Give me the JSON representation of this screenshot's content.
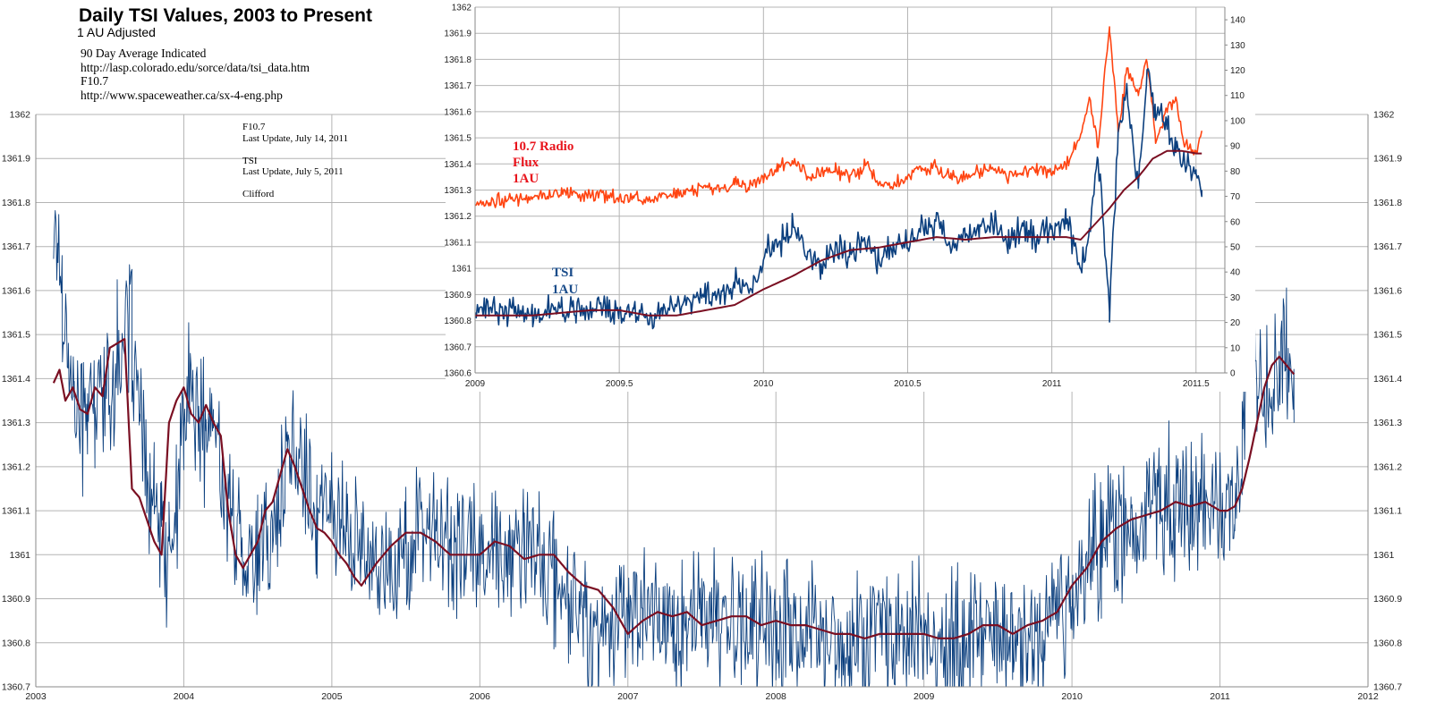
{
  "header": {
    "title": "Daily TSI Values, 2003 to Present",
    "subtitle": "1 AU Adjusted",
    "notes": [
      "90 Day Average Indicated",
      "http://lasp.colorado.edu/sorce/data/tsi_data.htm",
      "F10.7",
      "http://www.spaceweather.ca/sx-4-eng.php"
    ],
    "updates": [
      "F10.7",
      "Last Update, July 14, 2011",
      "",
      "TSI",
      "Last Update, July 5, 2011",
      "",
      "Clifford"
    ]
  },
  "colors": {
    "tsi": "#0b3f7e",
    "avg": "#7a0f22",
    "f107": "#ff4411",
    "grid": "#b4b4b4",
    "f107_label": "#e8141c",
    "tsi_label": "#1a4c8a"
  },
  "chart_data": [
    {
      "id": "main",
      "type": "line",
      "xlim": [
        2003,
        2012
      ],
      "ylim": [
        1360.7,
        1362.0
      ],
      "x_ticks": [
        "2003",
        "2004",
        "2005",
        "2006",
        "2007",
        "2008",
        "2009",
        "2010",
        "2011",
        "2012"
      ],
      "y_ticks": [
        "1362",
        "1361.9",
        "1361.8",
        "1361.7",
        "1361.6",
        "1361.5",
        "1361.4",
        "1361.3",
        "1361.2",
        "1361.1",
        "1361",
        "1360.9",
        "1360.8",
        "1360.7"
      ],
      "grid": true,
      "series": [
        {
          "key": "tsi",
          "noise": 0.14,
          "x": [
            2003.12,
            2003.15,
            2003.18,
            2003.22,
            2003.26,
            2003.3,
            2003.35,
            2003.4,
            2003.45,
            2003.5,
            2003.55,
            2003.6,
            2003.65,
            2003.7,
            2003.75,
            2003.8,
            2003.85,
            2003.9,
            2003.95,
            2004.0,
            2004.05,
            2004.1,
            2004.15,
            2004.2,
            2004.3,
            2004.4,
            2004.5,
            2004.6,
            2004.7,
            2004.8,
            2004.9,
            2005.0,
            2005.1,
            2005.2,
            2005.3,
            2005.4,
            2005.5,
            2005.6,
            2005.7,
            2005.8,
            2005.9,
            2006.0,
            2006.1,
            2006.2,
            2006.3,
            2006.4,
            2006.5,
            2006.6,
            2006.7,
            2006.8,
            2006.9,
            2007.0,
            2007.1,
            2007.2,
            2007.3,
            2007.4,
            2007.5,
            2007.6,
            2007.7,
            2007.8,
            2007.9,
            2008.0,
            2008.1,
            2008.2,
            2008.3,
            2008.4,
            2008.5,
            2008.6,
            2008.7,
            2008.8,
            2008.9,
            2009.0,
            2009.1,
            2009.2,
            2009.3,
            2009.4,
            2009.5,
            2009.6,
            2009.7,
            2009.8,
            2009.9,
            2010.0,
            2010.1,
            2010.2,
            2010.3,
            2010.4,
            2010.5,
            2010.6,
            2010.7,
            2010.8,
            2010.9,
            2011.0,
            2011.1,
            2011.15,
            2011.2,
            2011.25,
            2011.3,
            2011.35,
            2011.4,
            2011.45,
            2011.5
          ],
          "y": [
            1361.76,
            1361.7,
            1361.6,
            1361.45,
            1361.35,
            1361.3,
            1361.35,
            1361.32,
            1361.4,
            1361.35,
            1361.45,
            1361.5,
            1361.52,
            1361.3,
            1361.15,
            1361.1,
            1361.05,
            1361.0,
            1361.1,
            1361.3,
            1361.38,
            1361.3,
            1361.28,
            1361.3,
            1361.1,
            1361.02,
            1360.98,
            1361.05,
            1361.2,
            1361.22,
            1361.1,
            1361.12,
            1361.05,
            1361.0,
            1361.02,
            1360.95,
            1361.0,
            1361.05,
            1361.06,
            1361.02,
            1361.0,
            1361.02,
            1361.03,
            1360.98,
            1361.0,
            1361.0,
            1360.95,
            1360.9,
            1360.85,
            1360.8,
            1360.87,
            1360.87,
            1360.88,
            1360.86,
            1360.85,
            1360.82,
            1360.85,
            1360.86,
            1360.85,
            1360.84,
            1360.83,
            1360.85,
            1360.83,
            1360.83,
            1360.82,
            1360.8,
            1360.8,
            1360.82,
            1360.83,
            1360.82,
            1360.82,
            1360.82,
            1360.81,
            1360.82,
            1360.8,
            1360.84,
            1360.83,
            1360.8,
            1360.82,
            1360.84,
            1360.88,
            1360.9,
            1360.97,
            1361.05,
            1361.08,
            1361.05,
            1361.08,
            1361.12,
            1361.1,
            1361.1,
            1361.1,
            1361.12,
            1361.1,
            1361.25,
            1361.6,
            1361.4,
            1361.35,
            1361.4,
            1361.45,
            1361.5,
            1361.3
          ]
        },
        {
          "key": "avg",
          "noise": 0,
          "x": [
            2003.12,
            2003.16,
            2003.2,
            2003.25,
            2003.3,
            2003.35,
            2003.4,
            2003.45,
            2003.5,
            2003.55,
            2003.6,
            2003.65,
            2003.7,
            2003.75,
            2003.8,
            2003.85,
            2003.9,
            2003.95,
            2004.0,
            2004.05,
            2004.1,
            2004.15,
            2004.2,
            2004.25,
            2004.3,
            2004.35,
            2004.4,
            2004.45,
            2004.5,
            2004.55,
            2004.6,
            2004.65,
            2004.7,
            2004.75,
            2004.8,
            2004.85,
            2004.9,
            2004.95,
            2005.0,
            2005.05,
            2005.1,
            2005.15,
            2005.2,
            2005.3,
            2005.4,
            2005.5,
            2005.6,
            2005.7,
            2005.8,
            2005.9,
            2006.0,
            2006.1,
            2006.2,
            2006.3,
            2006.4,
            2006.5,
            2006.6,
            2006.7,
            2006.8,
            2006.9,
            2007.0,
            2007.1,
            2007.2,
            2007.3,
            2007.4,
            2007.5,
            2007.6,
            2007.7,
            2007.8,
            2007.9,
            2008.0,
            2008.1,
            2008.2,
            2008.3,
            2008.4,
            2008.5,
            2008.6,
            2008.7,
            2008.8,
            2008.9,
            2009.0,
            2009.1,
            2009.2,
            2009.3,
            2009.4,
            2009.5,
            2009.6,
            2009.7,
            2009.8,
            2009.9,
            2010.0,
            2010.1,
            2010.2,
            2010.3,
            2010.4,
            2010.5,
            2010.6,
            2010.7,
            2010.8,
            2010.9,
            2011.0,
            2011.05,
            2011.1,
            2011.15,
            2011.2,
            2011.25,
            2011.3,
            2011.35,
            2011.4,
            2011.45,
            2011.5
          ],
          "y": [
            1361.39,
            1361.42,
            1361.35,
            1361.38,
            1361.33,
            1361.32,
            1361.38,
            1361.36,
            1361.47,
            1361.48,
            1361.49,
            1361.15,
            1361.13,
            1361.08,
            1361.03,
            1361.0,
            1361.3,
            1361.35,
            1361.38,
            1361.32,
            1361.3,
            1361.34,
            1361.3,
            1361.27,
            1361.1,
            1361.0,
            1360.97,
            1361.0,
            1361.03,
            1361.1,
            1361.12,
            1361.18,
            1361.24,
            1361.2,
            1361.15,
            1361.1,
            1361.06,
            1361.05,
            1361.03,
            1361.0,
            1360.98,
            1360.95,
            1360.93,
            1360.98,
            1361.02,
            1361.05,
            1361.05,
            1361.03,
            1361.0,
            1361.0,
            1361.0,
            1361.03,
            1361.02,
            1360.99,
            1361.0,
            1361.0,
            1360.96,
            1360.93,
            1360.92,
            1360.88,
            1360.82,
            1360.85,
            1360.87,
            1360.86,
            1360.87,
            1360.84,
            1360.85,
            1360.86,
            1360.86,
            1360.84,
            1360.85,
            1360.84,
            1360.84,
            1360.83,
            1360.82,
            1360.82,
            1360.81,
            1360.82,
            1360.82,
            1360.82,
            1360.82,
            1360.81,
            1360.81,
            1360.82,
            1360.84,
            1360.84,
            1360.82,
            1360.84,
            1360.85,
            1360.87,
            1360.93,
            1360.97,
            1361.03,
            1361.06,
            1361.08,
            1361.09,
            1361.1,
            1361.12,
            1361.11,
            1361.12,
            1361.1,
            1361.1,
            1361.11,
            1361.15,
            1361.22,
            1361.3,
            1361.38,
            1361.43,
            1361.45,
            1361.43,
            1361.41
          ]
        }
      ]
    },
    {
      "id": "inset",
      "type": "line",
      "xlim": [
        2009,
        2011.6
      ],
      "ylim": [
        1360.6,
        1362.0
      ],
      "y2lim": [
        0,
        145
      ],
      "x_ticks": [
        "2009",
        "2009.5",
        "2010",
        "2010.5",
        "2011",
        "2011.5"
      ],
      "y_ticks": [
        "1362",
        "1361.9",
        "1361.8",
        "1361.7",
        "1361.6",
        "1361.5",
        "1361.4",
        "1361.3",
        "1361.2",
        "1361.1",
        "1361",
        "1360.9",
        "1360.8",
        "1360.7",
        "1360.6"
      ],
      "y2_ticks": [
        "0",
        "10",
        "20",
        "30",
        "40",
        "50",
        "60",
        "70",
        "80",
        "90",
        "100",
        "110",
        "120",
        "130",
        "140"
      ],
      "grid": true,
      "annotations": [
        {
          "text": "10.7 Radio",
          "color": "f107_label"
        },
        {
          "text": "Flux",
          "color": "f107_label"
        },
        {
          "text": "1AU",
          "color": "f107_label"
        },
        {
          "text": "TSI",
          "color": "tsi_label"
        },
        {
          "text": "1AU",
          "color": "tsi_label"
        }
      ],
      "series": [
        {
          "key": "f107",
          "axis": "right",
          "noise": 2.5,
          "x": [
            2009.0,
            2009.05,
            2009.1,
            2009.15,
            2009.2,
            2009.25,
            2009.3,
            2009.35,
            2009.4,
            2009.45,
            2009.5,
            2009.55,
            2009.6,
            2009.65,
            2009.7,
            2009.75,
            2009.8,
            2009.85,
            2009.9,
            2009.95,
            2010.0,
            2010.05,
            2010.1,
            2010.15,
            2010.2,
            2010.25,
            2010.3,
            2010.35,
            2010.4,
            2010.45,
            2010.5,
            2010.55,
            2010.6,
            2010.65,
            2010.7,
            2010.75,
            2010.8,
            2010.85,
            2010.9,
            2010.95,
            2011.0,
            2011.05,
            2011.1,
            2011.13,
            2011.16,
            2011.2,
            2011.23,
            2011.26,
            2011.3,
            2011.33,
            2011.36,
            2011.4,
            2011.43,
            2011.46,
            2011.5,
            2011.52
          ],
          "y": [
            67,
            68,
            68,
            69,
            70,
            70,
            72,
            70,
            71,
            70,
            69,
            70,
            68,
            70,
            71,
            72,
            74,
            72,
            75,
            74,
            77,
            82,
            85,
            78,
            80,
            80,
            77,
            82,
            76,
            74,
            78,
            80,
            82,
            78,
            78,
            80,
            82,
            78,
            80,
            80,
            80,
            83,
            95,
            110,
            90,
            138,
            95,
            120,
            110,
            125,
            92,
            105,
            108,
            90,
            88,
            96
          ]
        },
        {
          "key": "tsi",
          "axis": "left",
          "noise": 0.05,
          "x": [
            2009.0,
            2009.05,
            2009.1,
            2009.15,
            2009.2,
            2009.25,
            2009.3,
            2009.35,
            2009.4,
            2009.45,
            2009.5,
            2009.55,
            2009.6,
            2009.65,
            2009.7,
            2009.75,
            2009.8,
            2009.85,
            2009.9,
            2009.95,
            2010.0,
            2010.05,
            2010.1,
            2010.15,
            2010.2,
            2010.25,
            2010.3,
            2010.35,
            2010.4,
            2010.45,
            2010.5,
            2010.55,
            2010.6,
            2010.65,
            2010.7,
            2010.75,
            2010.8,
            2010.85,
            2010.9,
            2010.95,
            2011.0,
            2011.05,
            2011.1,
            2011.13,
            2011.16,
            2011.2,
            2011.23,
            2011.26,
            2011.3,
            2011.33,
            2011.36,
            2011.4,
            2011.43,
            2011.46,
            2011.5,
            2011.52
          ],
          "y": [
            1360.84,
            1360.85,
            1360.83,
            1360.84,
            1360.82,
            1360.84,
            1360.86,
            1360.82,
            1360.85,
            1360.84,
            1360.82,
            1360.84,
            1360.8,
            1360.85,
            1360.86,
            1360.88,
            1360.9,
            1360.88,
            1360.95,
            1360.9,
            1361.05,
            1361.1,
            1361.15,
            1361.08,
            1361.0,
            1361.1,
            1361.05,
            1361.12,
            1361.02,
            1361.08,
            1361.1,
            1361.15,
            1361.18,
            1361.08,
            1361.12,
            1361.15,
            1361.18,
            1361.1,
            1361.15,
            1361.12,
            1361.15,
            1361.2,
            1361.0,
            1361.1,
            1361.45,
            1360.85,
            1361.5,
            1361.7,
            1361.3,
            1361.75,
            1361.6,
            1361.55,
            1361.45,
            1361.4,
            1361.35,
            1361.3
          ]
        },
        {
          "key": "avg",
          "axis": "left",
          "noise": 0,
          "x": [
            2009.0,
            2009.1,
            2009.2,
            2009.3,
            2009.4,
            2009.5,
            2009.6,
            2009.7,
            2009.8,
            2009.9,
            2010.0,
            2010.1,
            2010.2,
            2010.3,
            2010.4,
            2010.5,
            2010.6,
            2010.7,
            2010.8,
            2010.9,
            2011.0,
            2011.05,
            2011.1,
            2011.15,
            2011.2,
            2011.25,
            2011.3,
            2011.35,
            2011.4,
            2011.45,
            2011.5,
            2011.52
          ],
          "y": [
            1360.82,
            1360.82,
            1360.82,
            1360.83,
            1360.84,
            1360.84,
            1360.82,
            1360.82,
            1360.84,
            1360.86,
            1360.92,
            1360.97,
            1361.03,
            1361.07,
            1361.08,
            1361.1,
            1361.12,
            1361.11,
            1361.12,
            1361.12,
            1361.12,
            1361.12,
            1361.11,
            1361.17,
            1361.23,
            1361.3,
            1361.35,
            1361.42,
            1361.45,
            1361.45,
            1361.44,
            1361.44
          ]
        }
      ]
    }
  ]
}
